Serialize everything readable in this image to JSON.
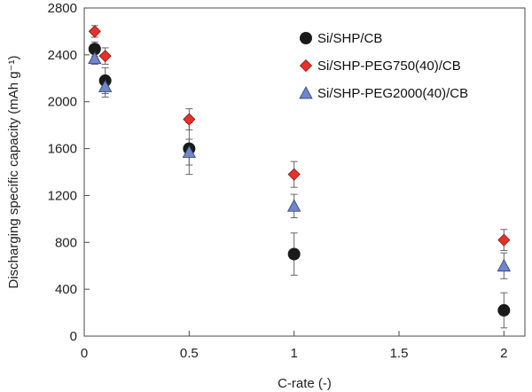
{
  "chart_data": {
    "type": "scatter",
    "xlabel": "C-rate (-)",
    "ylabel": "Discharging specific capacity (mAh g⁻¹)",
    "xlim": [
      0,
      2.1
    ],
    "ylim": [
      0,
      2800
    ],
    "x_ticks": [
      0,
      0.5,
      1,
      1.5,
      2
    ],
    "x_tick_labels": [
      "0",
      "0.5",
      "1",
      "1.5",
      "2"
    ],
    "y_ticks": [
      0,
      400,
      800,
      1200,
      1600,
      2000,
      2400,
      2800
    ],
    "y_tick_labels": [
      "0",
      "400",
      "800",
      "1200",
      "1600",
      "2000",
      "2400",
      "2800"
    ],
    "grid": false,
    "legend_position": "top-right",
    "series": [
      {
        "name": "Si/SHP/CB",
        "marker": "circle",
        "color": "#1a1a1a",
        "x": [
          0.05,
          0.1,
          0.5,
          1,
          2
        ],
        "y": [
          2450,
          2180,
          1600,
          700,
          220
        ],
        "error": [
          60,
          110,
          220,
          180,
          150
        ]
      },
      {
        "name": "Si/SHP-PEG750(40)/CB",
        "marker": "diamond",
        "color": "#e8302a",
        "x": [
          0.05,
          0.1,
          0.5,
          1,
          2
        ],
        "y": [
          2600,
          2390,
          1850,
          1380,
          820
        ],
        "error": [
          50,
          70,
          90,
          110,
          90
        ]
      },
      {
        "name": "Si/SHP-PEG2000(40)/CB",
        "marker": "triangle",
        "color": "#6f86c8",
        "x": [
          0.05,
          0.1,
          0.5,
          1,
          2
        ],
        "y": [
          2370,
          2130,
          1570,
          1110,
          600
        ],
        "error": [
          50,
          90,
          110,
          100,
          110
        ]
      }
    ]
  }
}
